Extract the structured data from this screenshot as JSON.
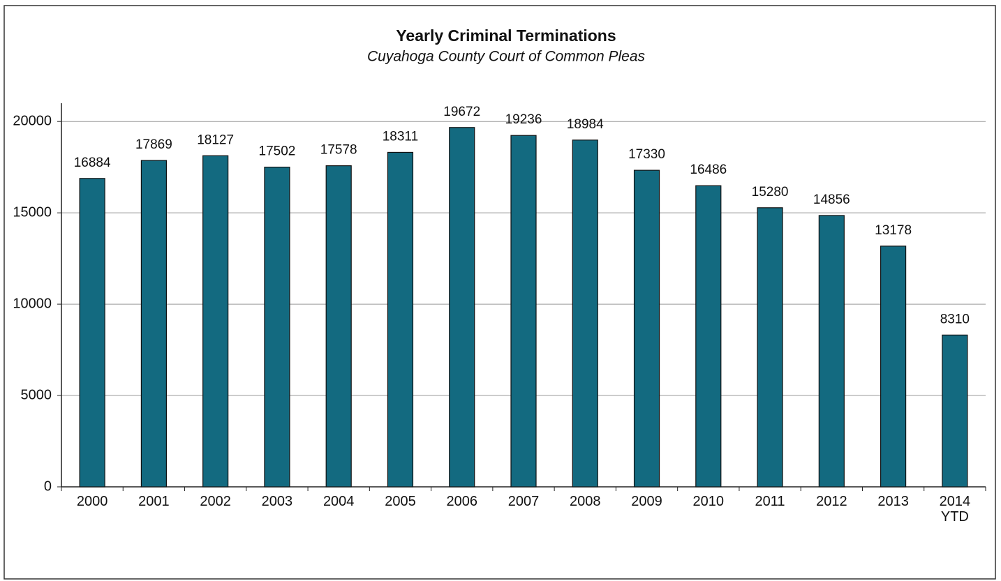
{
  "chart_data": {
    "type": "bar",
    "title": "Yearly Criminal Terminations",
    "subtitle": "Cuyahoga County Court of Common Pleas",
    "categories": [
      "2000",
      "2001",
      "2002",
      "2003",
      "2004",
      "2005",
      "2006",
      "2007",
      "2008",
      "2009",
      "2010",
      "2011",
      "2012",
      "2013",
      "2014 YTD"
    ],
    "values": [
      16884,
      17869,
      18127,
      17502,
      17578,
      18311,
      19672,
      19236,
      18984,
      17330,
      16486,
      15280,
      14856,
      13178,
      8310
    ],
    "color": "#136a80",
    "ylim": [
      0,
      21000
    ],
    "yticks": [
      0,
      5000,
      10000,
      15000,
      20000
    ],
    "grid": true
  }
}
